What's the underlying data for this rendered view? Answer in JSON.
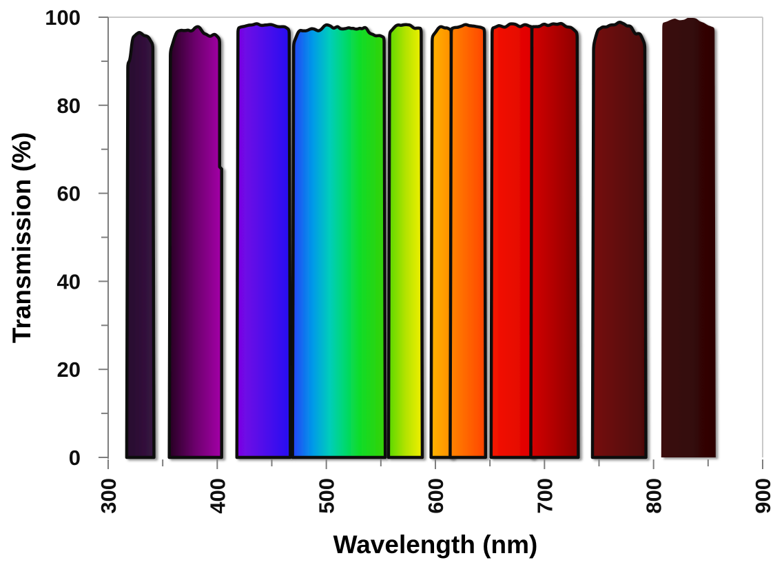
{
  "chart_data": {
    "type": "area",
    "title": "",
    "xlabel": "Wavelength (nm)",
    "ylabel": "Transmission (%)",
    "xlim": [
      300,
      900
    ],
    "ylim": [
      0,
      100
    ],
    "grid": false,
    "legend": "none",
    "x_major_ticks": [
      300,
      400,
      500,
      600,
      700,
      800,
      900
    ],
    "x_minor_step": 50,
    "y_major_ticks": [
      0,
      20,
      40,
      60,
      80,
      100
    ],
    "y_minor_step": 10,
    "style": {
      "background": "#ffffff",
      "y_axis_line": "#7d7d7d",
      "plot_border": "#c9c9c9",
      "x_axis_line": "#141414",
      "tick_color": "#7d7d7d",
      "text_color": "#0f0f0f",
      "band_outline": "#0c0c0c",
      "shadow_color": "#4a4a4a"
    },
    "bands": [
      {
        "name": "uv-330",
        "range": [
          318,
          341
        ],
        "peak_pct": 96.3,
        "noise": 0.6,
        "outline": true,
        "profile": [
          [
            0,
            89.5
          ],
          [
            0.1,
            90.3
          ],
          [
            0.18,
            95.3
          ],
          [
            0.5,
            96.3
          ],
          [
            0.8,
            95.4
          ],
          [
            1,
            93.8
          ]
        ],
        "colors": [
          {
            "o": 0,
            "c": "#280d2e"
          },
          {
            "o": 1,
            "c": "#361341"
          }
        ]
      },
      {
        "name": "violet-380",
        "range": [
          357,
          404
        ],
        "peak_pct": 96.9,
        "noise": 1.4,
        "outline": true,
        "right_step": {
          "pct": 66,
          "inset": 1.8
        },
        "profile": [
          [
            0,
            92.5
          ],
          [
            0.12,
            95.8
          ],
          [
            0.35,
            96.6
          ],
          [
            0.6,
            96.9
          ],
          [
            0.85,
            96.2
          ],
          [
            1,
            95.2
          ]
        ],
        "colors": [
          {
            "o": 0,
            "c": "#260122"
          },
          {
            "o": 0.5,
            "c": "#6d006d"
          },
          {
            "o": 1,
            "c": "#a400a8"
          }
        ]
      },
      {
        "name": "blue-440",
        "range": [
          419,
          466
        ],
        "peak_pct": 98.5,
        "noise": 0.5,
        "outline": true,
        "profile": [
          [
            0,
            97.5
          ],
          [
            0.2,
            98.4
          ],
          [
            0.6,
            98.5
          ],
          [
            0.9,
            98
          ],
          [
            1,
            97.2
          ]
        ],
        "colors": [
          {
            "o": 0,
            "c": "#7c05e3"
          },
          {
            "o": 1,
            "c": "#2512f2"
          }
        ]
      },
      {
        "name": "cyan-green-510",
        "range": [
          470,
          553
        ],
        "peak_pct": 97.8,
        "noise": 1.3,
        "outline": true,
        "profile": [
          [
            0,
            94.2
          ],
          [
            0.06,
            96.8
          ],
          [
            0.3,
            97.4
          ],
          [
            0.55,
            97.8
          ],
          [
            0.8,
            97
          ],
          [
            0.93,
            96
          ],
          [
            1,
            95.2
          ]
        ],
        "colors": [
          {
            "o": 0,
            "c": "#2541f7"
          },
          {
            "o": 0.22,
            "c": "#009ae8"
          },
          {
            "o": 0.4,
            "c": "#00cdbb"
          },
          {
            "o": 0.55,
            "c": "#00d877"
          },
          {
            "o": 0.72,
            "c": "#0edc2a"
          },
          {
            "o": 1,
            "c": "#37d203"
          }
        ]
      },
      {
        "name": "green-yellow-570",
        "range": [
          558,
          587
        ],
        "peak_pct": 98.3,
        "noise": 0.8,
        "outline": true,
        "profile": [
          [
            0,
            96.5
          ],
          [
            0.25,
            98.3
          ],
          [
            0.6,
            98.1
          ],
          [
            1,
            97.5
          ]
        ],
        "colors": [
          {
            "o": 0,
            "c": "#58d800"
          },
          {
            "o": 0.5,
            "c": "#b2e300"
          },
          {
            "o": 1,
            "c": "#f2ef00"
          }
        ]
      },
      {
        "name": "orange-605",
        "range": [
          597,
          614.5
        ],
        "peak_pct": 97.7,
        "noise": 0.7,
        "outline": true,
        "profile": [
          [
            0,
            95.5
          ],
          [
            0.3,
            97.7
          ],
          [
            0.7,
            97.5
          ],
          [
            1,
            97.2
          ]
        ],
        "colors": [
          {
            "o": 0,
            "c": "#ffb300"
          },
          {
            "o": 1,
            "c": "#ff8d00"
          }
        ]
      },
      {
        "name": "orange-red-630",
        "range": [
          614.5,
          645
        ],
        "peak_pct": 98.1,
        "noise": 0.5,
        "outline": true,
        "profile": [
          [
            0,
            97.3
          ],
          [
            0.4,
            98.1
          ],
          [
            0.8,
            97.8
          ],
          [
            1,
            97.3
          ]
        ],
        "colors": [
          {
            "o": 0,
            "c": "#ff8400"
          },
          {
            "o": 1,
            "c": "#ff4400"
          }
        ]
      },
      {
        "name": "red-670",
        "range": [
          652,
          688.5
        ],
        "peak_pct": 98.4,
        "noise": 0.6,
        "outline": true,
        "profile": [
          [
            0,
            97.5
          ],
          [
            0.4,
            98.4
          ],
          [
            1,
            97.9
          ]
        ],
        "colors": [
          {
            "o": 0,
            "c": "#f51500"
          },
          {
            "o": 1,
            "c": "#de0000"
          }
        ]
      },
      {
        "name": "deep-red-710",
        "range": [
          688.5,
          730
        ],
        "peak_pct": 98.5,
        "noise": 0.6,
        "outline": true,
        "profile": [
          [
            0,
            97.9
          ],
          [
            0.5,
            98.5
          ],
          [
            0.85,
            98.1
          ],
          [
            1,
            96.3
          ]
        ],
        "colors": [
          {
            "o": 0,
            "c": "#d40000"
          },
          {
            "o": 1,
            "c": "#8c0000"
          }
        ]
      },
      {
        "name": "dark-red-770",
        "range": [
          745,
          792
        ],
        "peak_pct": 98.8,
        "noise": 1.0,
        "outline": true,
        "profile": [
          [
            0,
            93.5
          ],
          [
            0.08,
            97.3
          ],
          [
            0.4,
            98.8
          ],
          [
            0.7,
            98.5
          ],
          [
            0.82,
            96.2
          ],
          [
            0.92,
            96.4
          ],
          [
            1,
            93.8
          ]
        ],
        "colors": [
          {
            "o": 0,
            "c": "#761111"
          },
          {
            "o": 1,
            "c": "#4d0606"
          }
        ]
      },
      {
        "name": "nir-830",
        "range": [
          808,
          856
        ],
        "peak_pct": 99.6,
        "noise": 0.5,
        "outline": false,
        "profile": [
          [
            0,
            98.6
          ],
          [
            0.25,
            99.6
          ],
          [
            0.65,
            99.5
          ],
          [
            0.82,
            98.4
          ],
          [
            1,
            97.6
          ]
        ],
        "colors": [
          {
            "o": 0,
            "c": "#3b0a0a"
          },
          {
            "o": 1,
            "c": "#2e0505"
          }
        ]
      }
    ]
  }
}
